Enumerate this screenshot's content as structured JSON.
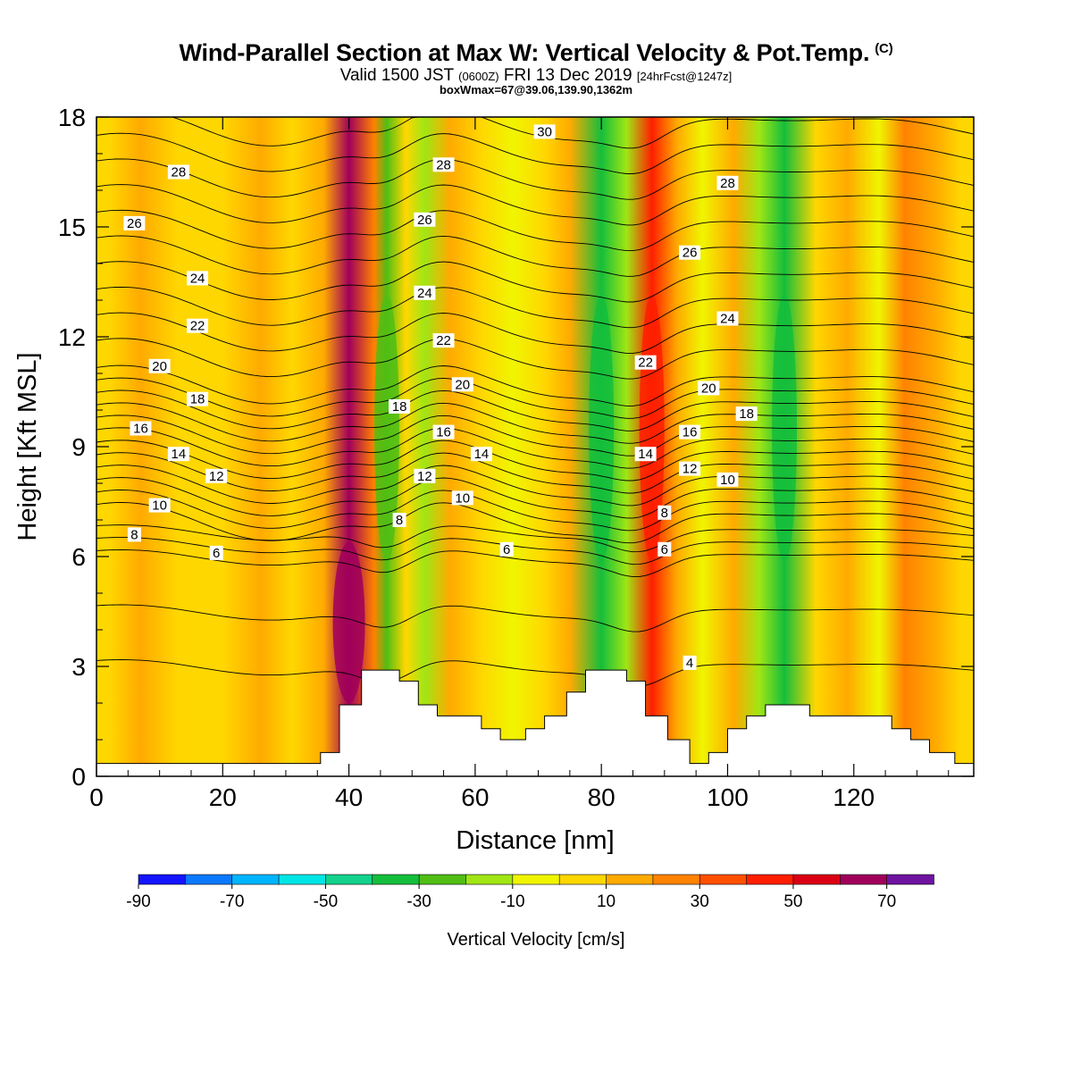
{
  "header": {
    "title": "Wind-Parallel Section at Max W: Vertical Velocity & Pot.Temp.",
    "title_unit": "(C)",
    "valid_prefix": "Valid 1500 JST",
    "valid_zulu": "(0600Z)",
    "valid_date": "FRI 13 Dec 2019",
    "forecast": "[24hrFcst@1247z]",
    "box_info": "boxWmax=67@39.06,139.90,1362m"
  },
  "chart_data": {
    "type": "heatmap",
    "xlabel": "Distance [nm]",
    "ylabel": "Height [Kft MSL]",
    "xlim": [
      0,
      139
    ],
    "ylim": [
      0,
      18
    ],
    "x_ticks": [
      "0",
      "20",
      "40",
      "60",
      "80",
      "100",
      "120"
    ],
    "x_tick_values": [
      0,
      20,
      40,
      60,
      80,
      100,
      120
    ],
    "y_ticks": [
      "0",
      "3",
      "6",
      "9",
      "12",
      "15",
      "18"
    ],
    "y_tick_values": [
      0,
      3,
      6,
      9,
      12,
      15,
      18
    ],
    "colorbar": {
      "label": "Vertical Velocity [cm/s]",
      "tick_labels": [
        "-90",
        "-70",
        "-50",
        "-30",
        "-10",
        "10",
        "30",
        "50",
        "70"
      ],
      "colors": [
        "#1414ff",
        "#0a78ff",
        "#00b4ff",
        "#00e6e6",
        "#14d28c",
        "#14be3c",
        "#50be14",
        "#a0e614",
        "#f0f500",
        "#ffd700",
        "#ffaa00",
        "#ff8200",
        "#ff5000",
        "#ff1e00",
        "#dc0014",
        "#a0005a",
        "#6e14a0"
      ],
      "min": -90,
      "max": 80,
      "step": 10
    },
    "w_columns": [
      {
        "x": 2,
        "w": 8
      },
      {
        "x": 7,
        "w": 14
      },
      {
        "x": 13,
        "w": 5
      },
      {
        "x": 20,
        "w": 8
      },
      {
        "x": 26,
        "w": 12
      },
      {
        "x": 31,
        "w": 3
      },
      {
        "x": 36,
        "w": 18
      },
      {
        "x": 40,
        "w": 67
      },
      {
        "x": 44,
        "w": 22
      },
      {
        "x": 46,
        "w": -28
      },
      {
        "x": 49,
        "w": 4
      },
      {
        "x": 52,
        "w": -18
      },
      {
        "x": 56,
        "w": 16
      },
      {
        "x": 61,
        "w": 7
      },
      {
        "x": 66,
        "w": -6
      },
      {
        "x": 71,
        "w": 9
      },
      {
        "x": 75,
        "w": 12
      },
      {
        "x": 80,
        "w": -35
      },
      {
        "x": 84,
        "w": -12
      },
      {
        "x": 88,
        "w": 42
      },
      {
        "x": 92,
        "w": 15
      },
      {
        "x": 96,
        "w": -8
      },
      {
        "x": 101,
        "w": 14
      },
      {
        "x": 105,
        "w": -18
      },
      {
        "x": 109,
        "w": -32
      },
      {
        "x": 114,
        "w": 6
      },
      {
        "x": 119,
        "w": 18
      },
      {
        "x": 124,
        "w": -4
      },
      {
        "x": 128,
        "w": 20
      },
      {
        "x": 133,
        "w": 12
      },
      {
        "x": 137,
        "w": 8
      }
    ],
    "theta_contours": {
      "min_level": 4,
      "max_level": 30,
      "step": 1,
      "labels": [
        {
          "level": "28",
          "x": 13,
          "y": 16.5
        },
        {
          "level": "26",
          "x": 6,
          "y": 15.1
        },
        {
          "level": "24",
          "x": 16,
          "y": 13.6
        },
        {
          "level": "22",
          "x": 16,
          "y": 12.3
        },
        {
          "level": "20",
          "x": 10,
          "y": 11.2
        },
        {
          "level": "18",
          "x": 16,
          "y": 10.3
        },
        {
          "level": "16",
          "x": 7,
          "y": 9.5
        },
        {
          "level": "14",
          "x": 13,
          "y": 8.8
        },
        {
          "level": "12",
          "x": 19,
          "y": 8.2
        },
        {
          "level": "10",
          "x": 10,
          "y": 7.4
        },
        {
          "level": "8",
          "x": 6,
          "y": 6.6
        },
        {
          "level": "6",
          "x": 19,
          "y": 6.1
        },
        {
          "level": "30",
          "x": 71,
          "y": 17.6
        },
        {
          "level": "28",
          "x": 55,
          "y": 16.7
        },
        {
          "level": "26",
          "x": 52,
          "y": 15.2
        },
        {
          "level": "24",
          "x": 52,
          "y": 13.2
        },
        {
          "level": "22",
          "x": 55,
          "y": 11.9
        },
        {
          "level": "20",
          "x": 58,
          "y": 10.7
        },
        {
          "level": "18",
          "x": 48,
          "y": 10.1
        },
        {
          "level": "16",
          "x": 55,
          "y": 9.4
        },
        {
          "level": "14",
          "x": 61,
          "y": 8.8
        },
        {
          "level": "12",
          "x": 52,
          "y": 8.2
        },
        {
          "level": "10",
          "x": 58,
          "y": 7.6
        },
        {
          "level": "8",
          "x": 48,
          "y": 7.0
        },
        {
          "level": "6",
          "x": 65,
          "y": 6.2
        },
        {
          "level": "28",
          "x": 100,
          "y": 16.2
        },
        {
          "level": "26",
          "x": 94,
          "y": 14.3
        },
        {
          "level": "24",
          "x": 100,
          "y": 12.5
        },
        {
          "level": "22",
          "x": 87,
          "y": 11.3
        },
        {
          "level": "20",
          "x": 97,
          "y": 10.6
        },
        {
          "level": "18",
          "x": 103,
          "y": 9.9
        },
        {
          "level": "16",
          "x": 94,
          "y": 9.4
        },
        {
          "level": "14",
          "x": 87,
          "y": 8.8
        },
        {
          "level": "12",
          "x": 94,
          "y": 8.4
        },
        {
          "level": "10",
          "x": 100,
          "y": 8.1
        },
        {
          "level": "8",
          "x": 90,
          "y": 7.2
        },
        {
          "level": "6",
          "x": 90,
          "y": 6.2
        },
        {
          "level": "4",
          "x": 94,
          "y": 3.1
        }
      ]
    },
    "terrain_kft": [
      {
        "x": 0,
        "h": 0.35
      },
      {
        "x": 35.5,
        "h": 0.35
      },
      {
        "x": 35.5,
        "h": 0.65
      },
      {
        "x": 38.5,
        "h": 0.65
      },
      {
        "x": 38.5,
        "h": 1.95
      },
      {
        "x": 42,
        "h": 1.95
      },
      {
        "x": 42,
        "h": 2.9
      },
      {
        "x": 48,
        "h": 2.9
      },
      {
        "x": 48,
        "h": 2.6
      },
      {
        "x": 51,
        "h": 2.6
      },
      {
        "x": 51,
        "h": 1.95
      },
      {
        "x": 54,
        "h": 1.95
      },
      {
        "x": 54,
        "h": 1.65
      },
      {
        "x": 61,
        "h": 1.65
      },
      {
        "x": 61,
        "h": 1.3
      },
      {
        "x": 64,
        "h": 1.3
      },
      {
        "x": 64,
        "h": 1.0
      },
      {
        "x": 68,
        "h": 1.0
      },
      {
        "x": 68,
        "h": 1.3
      },
      {
        "x": 71,
        "h": 1.3
      },
      {
        "x": 71,
        "h": 1.65
      },
      {
        "x": 74.5,
        "h": 1.65
      },
      {
        "x": 74.5,
        "h": 2.3
      },
      {
        "x": 77.5,
        "h": 2.3
      },
      {
        "x": 77.5,
        "h": 2.9
      },
      {
        "x": 84,
        "h": 2.9
      },
      {
        "x": 84,
        "h": 2.6
      },
      {
        "x": 87,
        "h": 2.6
      },
      {
        "x": 87,
        "h": 1.65
      },
      {
        "x": 90.5,
        "h": 1.65
      },
      {
        "x": 90.5,
        "h": 1.0
      },
      {
        "x": 94,
        "h": 1.0
      },
      {
        "x": 94,
        "h": 0.35
      },
      {
        "x": 97,
        "h": 0.35
      },
      {
        "x": 97,
        "h": 0.65
      },
      {
        "x": 100,
        "h": 0.65
      },
      {
        "x": 100,
        "h": 1.3
      },
      {
        "x": 103,
        "h": 1.3
      },
      {
        "x": 103,
        "h": 1.65
      },
      {
        "x": 106,
        "h": 1.65
      },
      {
        "x": 106,
        "h": 1.95
      },
      {
        "x": 113,
        "h": 1.95
      },
      {
        "x": 113,
        "h": 1.65
      },
      {
        "x": 126,
        "h": 1.65
      },
      {
        "x": 126,
        "h": 1.3
      },
      {
        "x": 129,
        "h": 1.3
      },
      {
        "x": 129,
        "h": 1.0
      },
      {
        "x": 132,
        "h": 1.0
      },
      {
        "x": 132,
        "h": 0.65
      },
      {
        "x": 136,
        "h": 0.65
      },
      {
        "x": 136,
        "h": 0.35
      },
      {
        "x": 139,
        "h": 0.35
      }
    ]
  }
}
